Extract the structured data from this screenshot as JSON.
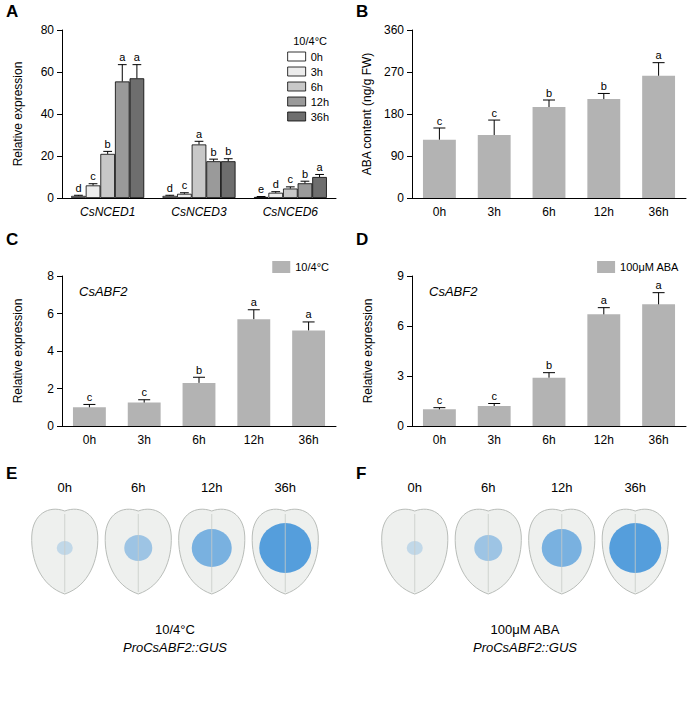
{
  "chart_data": [
    {
      "letter": "A",
      "type": "bar",
      "ylabel": "Relative expression",
      "legend_title": "10/4°C",
      "legend": "top-right",
      "categories": [
        "CsNCED1",
        "CsNCED3",
        "CsNCED6"
      ],
      "series": [
        {
          "name": "0h",
          "color": "#ffffff",
          "values": [
            1,
            1,
            0.5
          ],
          "errors": [
            0.3,
            0.3,
            0.2
          ],
          "significance": [
            "d",
            "d",
            "e"
          ]
        },
        {
          "name": "3h",
          "color": "#ececec",
          "values": [
            6,
            2,
            2.5
          ],
          "errors": [
            0.8,
            0.5,
            0.5
          ],
          "significance": [
            "c",
            "c",
            "d"
          ]
        },
        {
          "name": "6h",
          "color": "#c8c8c8",
          "values": [
            21,
            25.5,
            4.5
          ],
          "errors": [
            1.2,
            1.5,
            0.8
          ],
          "significance": [
            "b",
            "a",
            "c"
          ]
        },
        {
          "name": "12h",
          "color": "#9a9a9a",
          "values": [
            55.5,
            17.5,
            7
          ],
          "errors": [
            8,
            1,
            1
          ],
          "significance": [
            "a",
            "b",
            "b"
          ]
        },
        {
          "name": "36h",
          "color": "#6e6e6e",
          "values": [
            57,
            17.5,
            10
          ],
          "errors": [
            6.5,
            1.2,
            1.2
          ],
          "significance": [
            "a",
            "b",
            "a"
          ]
        }
      ],
      "ylim": [
        0,
        80
      ],
      "yticks": [
        0,
        20,
        40,
        60,
        80
      ],
      "grid": false
    },
    {
      "letter": "B",
      "type": "bar",
      "ylabel": "ABA content (ng/g FW)",
      "categories": [
        "0h",
        "3h",
        "6h",
        "12h",
        "36h"
      ],
      "series": [
        {
          "color": "#b3b3b3",
          "values": [
            125,
            135,
            195,
            212,
            262
          ],
          "errors": [
            25,
            32,
            15,
            12,
            28
          ],
          "significance": [
            "c",
            "c",
            "b",
            "b",
            "a"
          ]
        }
      ],
      "ylim": [
        0,
        360
      ],
      "yticks": [
        0,
        90,
        180,
        270,
        360
      ],
      "grid": false
    },
    {
      "letter": "C",
      "type": "bar",
      "ylabel": "Relative expression",
      "annotation": "CsABF2",
      "legend": "top-right",
      "categories": [
        "0h",
        "3h",
        "6h",
        "12h",
        "36h"
      ],
      "series": [
        {
          "name": "10/4°C",
          "color": "#b3b3b3",
          "values": [
            1,
            1.25,
            2.3,
            5.7,
            5.1
          ],
          "errors": [
            0.15,
            0.15,
            0.3,
            0.5,
            0.45
          ],
          "significance": [
            "c",
            "c",
            "b",
            "a",
            "a"
          ]
        }
      ],
      "ylim": [
        0,
        8
      ],
      "yticks": [
        0,
        2,
        4,
        6,
        8
      ],
      "grid": false
    },
    {
      "letter": "D",
      "type": "bar",
      "ylabel": "Relative expression",
      "annotation": "CsABF2",
      "legend": "top-right",
      "categories": [
        "0h",
        "3h",
        "6h",
        "12h",
        "36h"
      ],
      "series": [
        {
          "name": "100μM ABA",
          "color": "#b3b3b3",
          "values": [
            1,
            1.2,
            2.9,
            6.7,
            7.3
          ],
          "errors": [
            0.1,
            0.15,
            0.3,
            0.4,
            0.7
          ],
          "significance": [
            "c",
            "c",
            "b",
            "a",
            "a"
          ]
        }
      ],
      "ylim": [
        0,
        9
      ],
      "yticks": [
        0,
        3,
        6,
        9
      ],
      "grid": false
    }
  ],
  "image_panels": [
    {
      "letter": "E",
      "time_labels": [
        "0h",
        "6h",
        "12h",
        "36h"
      ],
      "caption": [
        "10/4°C",
        "ProCsABF2::GUS"
      ]
    },
    {
      "letter": "F",
      "time_labels": [
        "0h",
        "6h",
        "12h",
        "36h"
      ],
      "caption": [
        "100μM ABA",
        "ProCsABF2::GUS"
      ]
    }
  ]
}
